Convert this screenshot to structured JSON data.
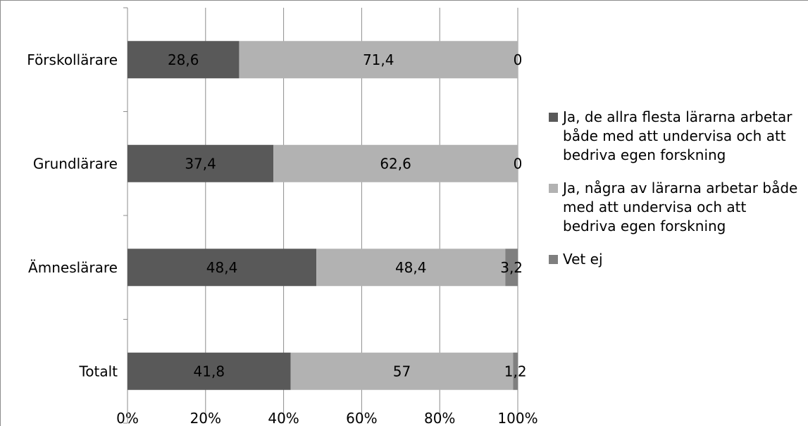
{
  "chart_data": {
    "type": "bar",
    "orientation": "horizontal",
    "stacked": "percent",
    "categories": [
      "Förskollärare",
      "Grundlärare",
      "Ämneslärare",
      "Totalt"
    ],
    "series": [
      {
        "name": "Ja, de allra flesta lärarna arbetar både med att undervisa och att bedriva egen forskning",
        "values": [
          28.6,
          37.4,
          48.4,
          41.8
        ],
        "labels": [
          "28,6",
          "37,4",
          "48,4",
          "41,8"
        ],
        "color": "#595959"
      },
      {
        "name": "Ja, några av lärarna arbetar både med att undervisa och att bedriva egen forskning",
        "values": [
          71.4,
          62.6,
          48.4,
          57
        ],
        "labels": [
          "71,4",
          "62,6",
          "48,4",
          "57"
        ],
        "color": "#b2b2b2"
      },
      {
        "name": "Vet ej",
        "values": [
          0,
          0,
          3.2,
          1.2
        ],
        "labels": [
          "0",
          "0",
          "3,2",
          "1,2"
        ],
        "color": "#7f7f7f"
      }
    ],
    "xlim": [
      0,
      100
    ],
    "xticks": [
      "0%",
      "20%",
      "40%",
      "60%",
      "80%",
      "100%"
    ],
    "grid": true,
    "legend_position": "right"
  },
  "legend_lines": [
    [
      "Ja, de allra flesta lärarna arbetar",
      "både med att undervisa och att",
      "bedriva egen forskning"
    ],
    [
      "Ja, några av lärarna arbetar både",
      "med att undervisa och att",
      "bedriva egen forskning"
    ],
    [
      "Vet ej"
    ]
  ]
}
